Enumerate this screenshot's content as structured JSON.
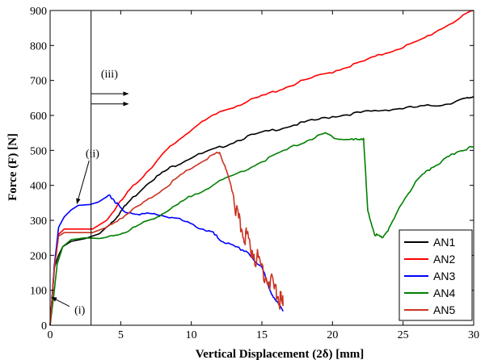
{
  "chart_data": {
    "type": "line",
    "xlabel": "Vertical Displacement (2δ) [mm]",
    "ylabel": "Force (F) [N]",
    "xlim": [
      0,
      30
    ],
    "ylim": [
      0,
      900
    ],
    "xticks": [
      "0",
      "5",
      "10",
      "15",
      "20",
      "25",
      "30"
    ],
    "yticks": [
      "0",
      "100",
      "200",
      "300",
      "400",
      "500",
      "600",
      "700",
      "800",
      "900"
    ],
    "grid": false,
    "legend_position": "bottom-right",
    "vline_x": 2.9,
    "annotations": [
      {
        "label": "(i)",
        "x": 2.1,
        "y": 45,
        "arrow_to": [
          0.1,
          80
        ]
      },
      {
        "label": "(ii)",
        "x": 3.0,
        "y": 493,
        "arrow_to": [
          1.9,
          348
        ]
      },
      {
        "label": "(iii)",
        "x": 4.2,
        "y": 720,
        "arrows_at": [
          [
            2.9,
            662
          ],
          [
            2.9,
            633
          ]
        ]
      }
    ],
    "series": [
      {
        "name": "AN1",
        "color": "#000000",
        "points": [
          [
            0,
            0
          ],
          [
            0.3,
            165
          ],
          [
            0.6,
            200
          ],
          [
            0.9,
            225
          ],
          [
            1.5,
            240
          ],
          [
            2.5,
            248
          ],
          [
            3.5,
            262
          ],
          [
            4.5,
            300
          ],
          [
            5.5,
            350
          ],
          [
            7,
            410
          ],
          [
            8.5,
            450
          ],
          [
            10,
            480
          ],
          [
            12,
            508
          ],
          [
            14,
            540
          ],
          [
            16,
            560
          ],
          [
            18,
            580
          ],
          [
            20,
            597
          ],
          [
            22,
            608
          ],
          [
            24,
            617
          ],
          [
            26,
            624
          ],
          [
            28,
            632
          ],
          [
            29.5,
            648
          ],
          [
            30,
            655
          ]
        ]
      },
      {
        "name": "AN2",
        "color": "#ff0000",
        "points": [
          [
            0,
            0
          ],
          [
            0.3,
            170
          ],
          [
            0.6,
            260
          ],
          [
            1.0,
            275
          ],
          [
            2.0,
            275
          ],
          [
            3.0,
            275
          ],
          [
            4.0,
            300
          ],
          [
            5.5,
            380
          ],
          [
            7,
            445
          ],
          [
            8.5,
            510
          ],
          [
            10,
            560
          ],
          [
            12,
            610
          ],
          [
            14,
            640
          ],
          [
            16,
            670
          ],
          [
            18,
            700
          ],
          [
            20,
            725
          ],
          [
            22,
            752
          ],
          [
            24,
            782
          ],
          [
            26,
            810
          ],
          [
            28,
            855
          ],
          [
            30,
            900
          ]
        ]
      },
      {
        "name": "AN3",
        "color": "#0000ff",
        "points": [
          [
            0,
            0
          ],
          [
            0.3,
            170
          ],
          [
            0.6,
            280
          ],
          [
            1.0,
            310
          ],
          [
            1.5,
            330
          ],
          [
            2.0,
            343
          ],
          [
            2.8,
            345
          ],
          [
            3.4,
            352
          ],
          [
            4.2,
            372
          ],
          [
            4.6,
            355
          ],
          [
            5.2,
            325
          ],
          [
            6.5,
            318
          ],
          [
            7.5,
            318
          ],
          [
            9,
            305
          ],
          [
            10.5,
            280
          ],
          [
            11.5,
            265
          ],
          [
            12,
            245
          ],
          [
            13,
            225
          ],
          [
            14,
            210
          ],
          [
            14.5,
            180
          ],
          [
            15,
            170
          ],
          [
            15.5,
            105
          ],
          [
            16,
            70
          ],
          [
            16.5,
            40
          ]
        ]
      },
      {
        "name": "AN4",
        "color": "#008000",
        "points": [
          [
            0,
            0
          ],
          [
            0.3,
            100
          ],
          [
            0.5,
            175
          ],
          [
            0.9,
            225
          ],
          [
            1.5,
            245
          ],
          [
            2.5,
            250
          ],
          [
            3.5,
            248
          ],
          [
            4.5,
            255
          ],
          [
            5.5,
            270
          ],
          [
            7,
            300
          ],
          [
            8.5,
            330
          ],
          [
            10,
            370
          ],
          [
            12,
            410
          ],
          [
            14,
            448
          ],
          [
            16,
            488
          ],
          [
            18,
            525
          ],
          [
            19.5,
            548
          ],
          [
            20.5,
            532
          ],
          [
            21.5,
            530
          ],
          [
            22.2,
            535
          ],
          [
            22.5,
            325
          ],
          [
            23,
            260
          ],
          [
            23.5,
            250
          ],
          [
            24,
            275
          ],
          [
            25,
            355
          ],
          [
            26,
            415
          ],
          [
            27,
            450
          ],
          [
            28,
            475
          ],
          [
            29,
            500
          ],
          [
            30,
            510
          ]
        ]
      },
      {
        "name": "AN5",
        "color": "#cc3322",
        "points": [
          [
            0,
            0
          ],
          [
            0.3,
            160
          ],
          [
            0.6,
            255
          ],
          [
            1.0,
            265
          ],
          [
            2.0,
            265
          ],
          [
            3.0,
            265
          ],
          [
            4.0,
            280
          ],
          [
            5.5,
            320
          ],
          [
            7,
            360
          ],
          [
            8.5,
            405
          ],
          [
            10,
            450
          ],
          [
            11.5,
            485
          ],
          [
            12,
            495
          ],
          [
            12.5,
            440
          ],
          [
            13,
            370
          ],
          [
            13.3,
            300
          ],
          [
            13.7,
            265
          ],
          [
            14,
            245
          ],
          [
            14.5,
            200
          ],
          [
            15,
            165
          ],
          [
            15.5,
            130
          ],
          [
            16,
            95
          ],
          [
            16.3,
            70
          ],
          [
            16.5,
            55
          ]
        ]
      }
    ]
  }
}
